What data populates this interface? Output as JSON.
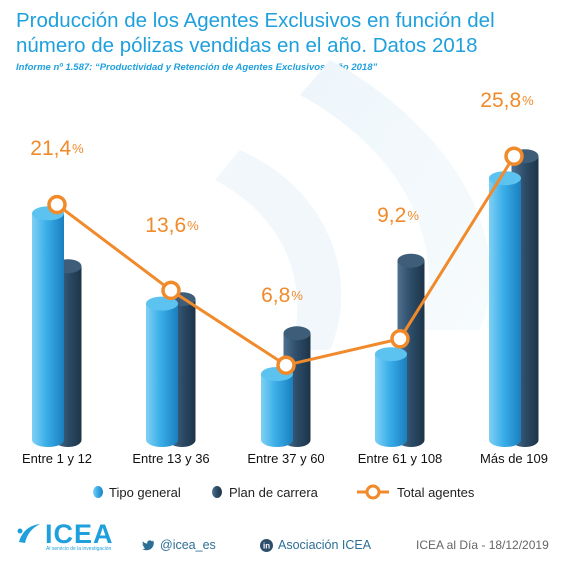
{
  "title": "Producción de los Agentes Exclusivos en función del número de pólizas vendidas en el año. Datos 2018",
  "subtitle": "Informe nº 1.587: “Productividad y Retención de Agentes Exclusivos. Año 2018”",
  "colors": {
    "accent": "#1fa0dd",
    "tipo_general": "#36a9e4",
    "plan_carrera": "#2a4a64",
    "total_line": "#f08a2b"
  },
  "chart_data": {
    "type": "bar",
    "categories": [
      "Entre 1 y 12",
      "Entre 13 y 36",
      "Entre 37 y 60",
      "Entre 61 y 108",
      "Más de 109"
    ],
    "series": [
      {
        "name": "Tipo general",
        "type": "bar",
        "values": [
          20.6,
          12.4,
          6.0,
          7.8,
          23.8
        ]
      },
      {
        "name": "Plan de carrera",
        "type": "bar",
        "values": [
          15.8,
          12.8,
          9.7,
          16.3,
          25.8
        ]
      },
      {
        "name": "Total agentes",
        "type": "line",
        "values": [
          21.4,
          13.6,
          6.8,
          9.2,
          25.8
        ]
      }
    ],
    "data_labels": [
      {
        "number": "21,4",
        "unit": "%"
      },
      {
        "number": "13,6",
        "unit": "%"
      },
      {
        "number": "6,8",
        "unit": "%"
      },
      {
        "number": "9,2",
        "unit": "%"
      },
      {
        "number": "25,8",
        "unit": "%"
      }
    ],
    "ylim": [
      0,
      30
    ],
    "grid": false,
    "legend_position": "bottom"
  },
  "legend": {
    "tipo_general": "Tipo general",
    "plan_carrera": "Plan de carrera",
    "total_agentes": "Total agentes"
  },
  "footer": {
    "logo_text": "ICEA",
    "logo_tagline": "Al servicio de la investigación",
    "twitter": "@icea_es",
    "linkedin": "Asociación ICEA",
    "date_line": "ICEA al Día - 18/12/2019"
  },
  "icons": [
    "icea-logo-icon",
    "twitter-icon",
    "linkedin-icon"
  ]
}
